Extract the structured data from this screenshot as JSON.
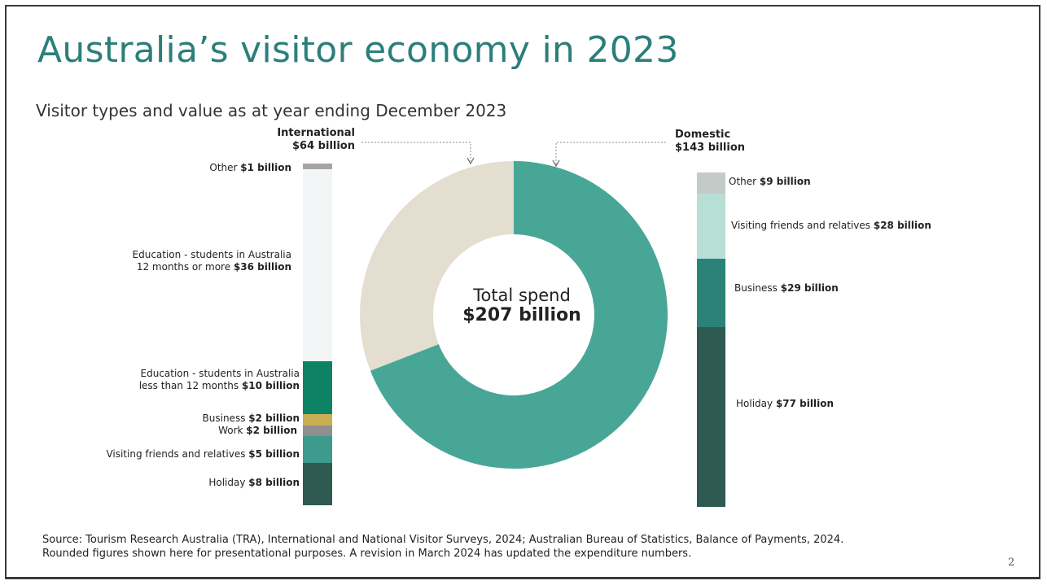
{
  "slide": {
    "title": "Australia’s visitor economy in 2023",
    "subtitle": "Visitor types and value as at year ending December 2023",
    "page_number": "2",
    "footer_line1": "Source: Tourism Research Australia (TRA), International and National Visitor Surveys, 2024; Australian Bureau of Statistics, Balance of Payments, 2024.",
    "footer_line2": "Rounded figures shown here for presentational purposes. A revision in March 2024 has updated the expenditure numbers."
  },
  "chart_data": [
    {
      "type": "pie",
      "center_label": "Total spend",
      "center_value": "$207 billion",
      "slices": [
        {
          "name": "International",
          "label_value": "$64 billion",
          "value": 64,
          "color": "#e3ded0"
        },
        {
          "name": "Domestic",
          "label_value": "$143 billion",
          "value": 143,
          "color": "#48a697"
        }
      ]
    },
    {
      "type": "bar",
      "stacked": true,
      "title": "International",
      "title_value": "$64 billion",
      "segments": [
        {
          "name": "Other",
          "label": "$1 billion",
          "value": 1,
          "color": "#a6a6a6"
        },
        {
          "name": "Education - students in Australia 12 months or more",
          "line1": "Education - students in Australia",
          "line2": "12 months or more",
          "label": "$36 billion",
          "value": 36,
          "color": "#f3f6f6"
        },
        {
          "name": "Education - students in Australia less than 12 months",
          "line1": "Education - students in Australia",
          "line2": "less than 12 months",
          "label": "$10 billion",
          "value": 10,
          "color": "#0e8265"
        },
        {
          "name": "Business",
          "label": "$2 billion",
          "value": 2,
          "color": "#c9ad52"
        },
        {
          "name": "Work",
          "label": "$2 billion",
          "value": 2,
          "color": "#8f8f8f"
        },
        {
          "name": "Visiting friends and relatives",
          "label": "$5 billion",
          "value": 5,
          "color": "#3d9a8c"
        },
        {
          "name": "Holiday",
          "label": "$8 billion",
          "value": 8,
          "color": "#2f5a52"
        }
      ]
    },
    {
      "type": "bar",
      "stacked": true,
      "title": "Domestic",
      "title_value": "$143 billion",
      "segments": [
        {
          "name": "Other",
          "label": "$9 billion",
          "value": 9,
          "color": "#c4cac8"
        },
        {
          "name": "Visiting friends and relatives",
          "label": "$28 billion",
          "value": 28,
          "color": "#b7dfd5"
        },
        {
          "name": "Business",
          "label": "$29 billion",
          "value": 29,
          "color": "#2b8378"
        },
        {
          "name": "Holiday",
          "label": "$77 billion",
          "value": 77,
          "color": "#2f5a52"
        }
      ]
    }
  ]
}
